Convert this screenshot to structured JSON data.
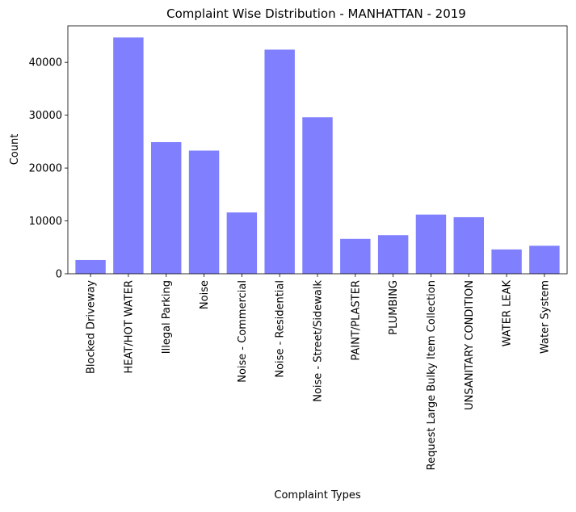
{
  "chart_data": {
    "type": "bar",
    "title": "Complaint Wise Distribution - MANHATTAN - 2019",
    "xlabel": "Complaint Types",
    "ylabel": "Count",
    "categories": [
      "Blocked Driveway",
      "HEAT/HOT WATER",
      "Illegal Parking",
      "Noise",
      "Noise - Commercial",
      "Noise - Residential",
      "Noise - Street/Sidewalk",
      "PAINT/PLASTER",
      "PLUMBING",
      "Request Large Bulky Item Collection",
      "UNSANITARY CONDITION",
      "WATER LEAK",
      "Water System"
    ],
    "values": [
      2600,
      44700,
      24900,
      23300,
      11600,
      42400,
      29600,
      6600,
      7300,
      11200,
      10700,
      4600,
      5300
    ],
    "ylim": [
      0,
      46900
    ],
    "yticks": [
      0,
      10000,
      20000,
      30000,
      40000
    ],
    "bar_color": "#8080ff",
    "grid": false,
    "legend": false
  }
}
